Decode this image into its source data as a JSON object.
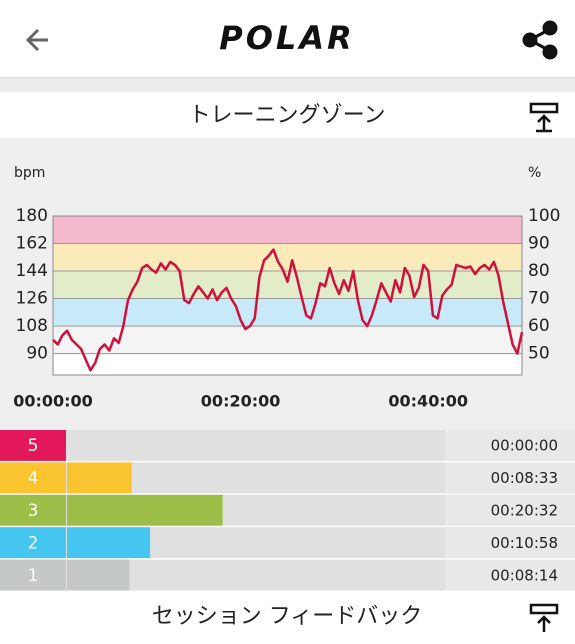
{
  "header": {
    "logo": "POLAR"
  },
  "section_title": "トレーニングゾーン",
  "chart_data": {
    "type": "line",
    "y_label": "bpm",
    "y2_label": "%",
    "x": [
      0,
      0.5,
      1,
      1.5,
      2,
      2.5,
      3,
      3.5,
      4,
      4.5,
      5,
      5.5,
      6,
      6.5,
      7,
      7.5,
      8,
      8.5,
      9,
      9.5,
      10,
      10.5,
      11,
      11.5,
      12,
      12.5,
      13,
      13.5,
      14,
      14.5,
      15,
      15.5,
      16,
      16.5,
      17,
      17.5,
      18,
      18.5,
      19,
      19.5,
      20,
      20.5,
      21,
      21.5,
      22,
      22.5,
      23,
      23.5,
      24,
      24.5,
      25,
      25.5,
      26,
      26.5,
      27,
      27.5,
      28,
      28.5,
      29,
      29.5,
      30,
      30.5,
      31,
      31.5,
      32,
      32.5,
      33,
      33.5,
      34,
      34.5,
      35,
      35.5,
      36,
      36.5,
      37,
      37.5,
      38,
      38.5,
      39,
      39.5,
      40,
      40.5,
      41,
      41.5,
      42,
      42.5,
      43,
      43.5,
      44,
      44.5,
      45,
      45.5,
      46,
      46.5,
      47,
      47.5,
      48,
      48.5,
      49,
      49.5,
      50
    ],
    "series": [
      {
        "color": "#d0103a",
        "values": [
          99,
          96,
          102,
          105,
          99,
          96,
          93,
          86,
          79,
          84,
          93,
          96,
          92,
          100,
          97,
          108,
          125,
          132,
          137,
          146,
          148,
          145,
          143,
          149,
          145,
          150,
          148,
          144,
          125,
          123,
          129,
          134,
          130,
          126,
          132,
          125,
          130,
          133,
          126,
          121,
          112,
          106,
          108,
          113,
          140,
          151,
          154,
          158,
          150,
          145,
          137,
          151,
          140,
          127,
          115,
          113,
          123,
          136,
          134,
          146,
          136,
          129,
          138,
          131,
          144,
          125,
          112,
          108,
          115,
          125,
          136,
          130,
          124,
          138,
          130,
          146,
          141,
          127,
          133,
          148,
          144,
          115,
          113,
          128,
          132,
          135,
          148,
          147,
          146,
          147,
          142,
          146,
          148,
          145,
          150,
          141,
          124,
          110,
          96,
          90,
          104
        ]
      }
    ],
    "xlim": [
      0,
      50
    ],
    "xticks": [
      {
        "value": 0,
        "label": "00:00:00"
      },
      {
        "value": 20,
        "label": "00:20:00"
      },
      {
        "value": 40,
        "label": "00:40:00"
      }
    ],
    "ylim": [
      76,
      180
    ],
    "yticks": [
      90,
      108,
      126,
      144,
      162,
      180
    ],
    "y2lim": [
      42.2,
      100
    ],
    "y2ticks": [
      50,
      60,
      70,
      80,
      90,
      100
    ],
    "zones": [
      {
        "from": 90,
        "to": 108,
        "color": "#f4f4f4"
      },
      {
        "from": 108,
        "to": 126,
        "color": "#c8e9f8"
      },
      {
        "from": 126,
        "to": 144,
        "color": "#e3ecc8"
      },
      {
        "from": 144,
        "to": 162,
        "color": "#fbebbb"
      },
      {
        "from": 162,
        "to": 180,
        "color": "#f5b9cf"
      }
    ],
    "grid": true
  },
  "zone_bars": {
    "categories": [
      "5",
      "4",
      "3",
      "2",
      "1"
    ],
    "values": [
      0,
      513,
      1232,
      658,
      494
    ],
    "value_labels": [
      "00:00:00",
      "00:08:33",
      "00:20:32",
      "00:10:58",
      "00:08:14"
    ],
    "colors": [
      "#e2185b",
      "#f9c42f",
      "#9dbd49",
      "#44c6f0",
      "#c4c8c8"
    ],
    "xlim": [
      0,
      3000
    ]
  },
  "footer_title": "セッション フィードバック"
}
